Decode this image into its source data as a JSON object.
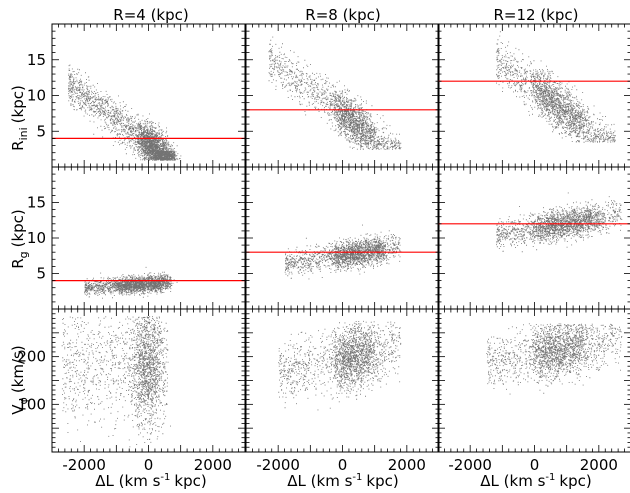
{
  "figure": {
    "col_titles": [
      "R=4 (kpc)",
      "R=8 (kpc)",
      "R=12 (kpc)"
    ],
    "ylabels": [
      {
        "main": "R",
        "sub": "ini",
        "unit": "(kpc)"
      },
      {
        "main": "R",
        "sub": "g",
        "unit": "(kpc)"
      },
      {
        "main": "V",
        "sub": "φ",
        "unit": "(km/s)"
      }
    ],
    "xlabel": {
      "main": "ΔL (km s",
      "sup": "-1",
      "tail": "kpc)"
    }
  },
  "chart_data": [
    {
      "type": "scatter",
      "row": 0,
      "col": 0,
      "ylabel": "R_ini (kpc)",
      "column_title": "R=4 (kpc)",
      "xlim": [
        -3000,
        3000
      ],
      "ylim": [
        0,
        20
      ],
      "xticks": [
        -2000,
        0,
        2000
      ],
      "yticks": [
        5,
        10,
        15
      ],
      "reference_line": {
        "y": 4,
        "color": "#ff0000"
      },
      "density": {
        "x_range": [
          -2500,
          800
        ],
        "slope": -0.0034,
        "intercept": 3.2,
        "spread": 1.3,
        "y_min": 1,
        "dense_core": [
          -200,
          600
        ]
      }
    },
    {
      "type": "scatter",
      "row": 0,
      "col": 1,
      "column_title": "R=8 (kpc)",
      "xlim": [
        -3000,
        3000
      ],
      "ylim": [
        0,
        20
      ],
      "xticks": [
        -2000,
        0,
        2000
      ],
      "yticks": [
        5,
        10,
        15
      ],
      "reference_line": {
        "y": 8,
        "color": "#ff0000"
      },
      "density": {
        "x_range": [
          -2300,
          1800
        ],
        "slope": -0.0033,
        "intercept": 7.5,
        "spread": 1.5,
        "y_min": 2.5,
        "dense_core": [
          -200,
          900
        ]
      }
    },
    {
      "type": "scatter",
      "row": 0,
      "col": 2,
      "column_title": "R=12 (kpc)",
      "xlim": [
        -3000,
        3000
      ],
      "ylim": [
        0,
        20
      ],
      "xticks": [
        -2000,
        0,
        2000
      ],
      "yticks": [
        5,
        10,
        15
      ],
      "reference_line": {
        "y": 12,
        "color": "#ff0000"
      },
      "density": {
        "x_range": [
          -1200,
          2500
        ],
        "slope": -0.0033,
        "intercept": 11,
        "spread": 1.6,
        "y_min": 3.5,
        "dense_core": [
          0,
          1500
        ]
      }
    },
    {
      "type": "scatter",
      "row": 1,
      "col": 0,
      "ylabel": "R_g (kpc)",
      "xlim": [
        -3000,
        3000
      ],
      "ylim": [
        0,
        20
      ],
      "xticks": [
        -2000,
        0,
        2000
      ],
      "yticks": [
        5,
        10,
        15
      ],
      "reference_line": {
        "y": 4,
        "color": "#ff0000"
      },
      "density": {
        "x_range": [
          -2000,
          700
        ],
        "slope": 0.0003,
        "intercept": 3.6,
        "spread": 0.55,
        "y_min": 0.8,
        "dense_core": [
          -1000,
          500
        ]
      }
    },
    {
      "type": "scatter",
      "row": 1,
      "col": 1,
      "xlim": [
        -3000,
        3000
      ],
      "ylim": [
        0,
        20
      ],
      "xticks": [
        -2000,
        0,
        2000
      ],
      "yticks": [
        5,
        10,
        15
      ],
      "reference_line": {
        "y": 8,
        "color": "#ff0000"
      },
      "density": {
        "x_range": [
          -1800,
          1800
        ],
        "slope": 0.0007,
        "intercept": 7.6,
        "spread": 0.9,
        "y_min": 3,
        "dense_core": [
          -300,
          1200
        ]
      }
    },
    {
      "type": "scatter",
      "row": 1,
      "col": 2,
      "xlim": [
        -3000,
        3000
      ],
      "ylim": [
        0,
        20
      ],
      "xticks": [
        -2000,
        0,
        2000
      ],
      "yticks": [
        5,
        10,
        15
      ],
      "reference_line": {
        "y": 12,
        "color": "#ff0000"
      },
      "density": {
        "x_range": [
          -1200,
          2700
        ],
        "slope": 0.0008,
        "intercept": 11.3,
        "spread": 1.0,
        "y_min": 7,
        "dense_core": [
          0,
          1800
        ]
      }
    },
    {
      "type": "scatter",
      "row": 2,
      "col": 0,
      "ylabel": "V_φ (km/s)",
      "xlabel": "ΔL (km s^-1 kpc)",
      "xlim": [
        -3000,
        3000
      ],
      "ylim": [
        0,
        300
      ],
      "xticks": [
        -2000,
        0,
        2000
      ],
      "yticks": [
        100,
        200
      ],
      "density": {
        "x_range": [
          -2700,
          600
        ],
        "slope": 0.0,
        "intercept": 180,
        "spread": 60,
        "y_min": 0,
        "y_max": 285,
        "dense_core": [
          -400,
          300
        ]
      }
    },
    {
      "type": "scatter",
      "row": 2,
      "col": 1,
      "xlabel": "ΔL (km s^-1 kpc)",
      "xlim": [
        -3000,
        3000
      ],
      "ylim": [
        0,
        300
      ],
      "xticks": [
        -2000,
        0,
        2000
      ],
      "yticks": [
        100,
        200
      ],
      "density": {
        "x_range": [
          -2000,
          1800
        ],
        "slope": 0.015,
        "intercept": 195,
        "spread": 32,
        "y_min": 70,
        "y_max": 275,
        "dense_core": [
          -200,
          900
        ]
      }
    },
    {
      "type": "scatter",
      "row": 2,
      "col": 2,
      "xlabel": "ΔL (km s^-1 kpc)",
      "xlim": [
        -3000,
        3000
      ],
      "ylim": [
        0,
        300
      ],
      "xticks": [
        -2000,
        0,
        2000
      ],
      "yticks": [
        100,
        200
      ],
      "density": {
        "x_range": [
          -1500,
          2700
        ],
        "slope": 0.012,
        "intercept": 205,
        "spread": 28,
        "y_min": 110,
        "y_max": 270,
        "dense_core": [
          0,
          1500
        ]
      }
    }
  ]
}
